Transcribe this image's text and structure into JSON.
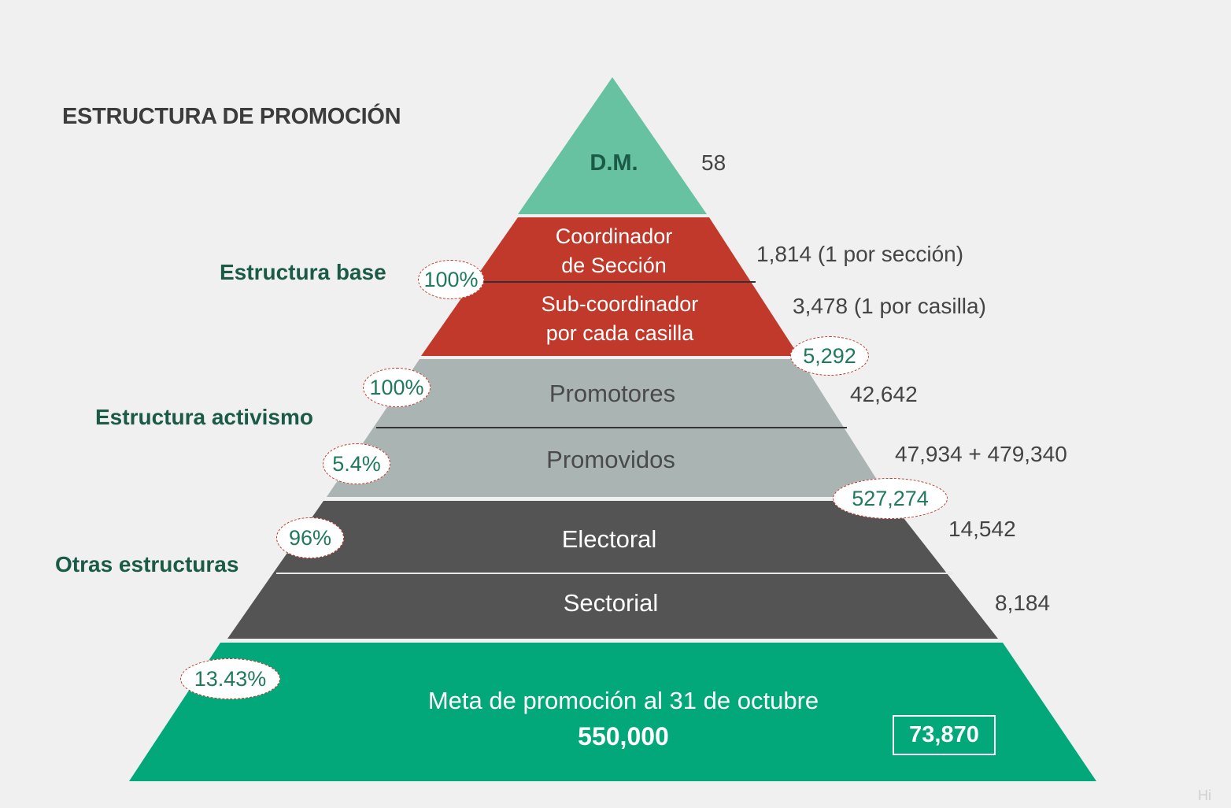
{
  "title": "ESTRUCTURA DE PROMOCIÓN",
  "groups": {
    "base": "Estructura base",
    "activismo": "Estructura activismo",
    "otras": "Otras estructuras"
  },
  "levels": {
    "dm": {
      "label": "D.M.",
      "value": "58"
    },
    "coordinador": {
      "label_line1": "Coordinador",
      "label_line2": "de Sección",
      "value": "1,814 (1 por sección)"
    },
    "subcoordinador": {
      "label_line1": "Sub-coordinador",
      "label_line2": "por cada casilla",
      "value": "3,478 (1 por casilla)"
    },
    "promotores": {
      "label": "Promotores",
      "value": "42,642"
    },
    "promovidos": {
      "label": "Promovidos",
      "value": "47,934 + 479,340"
    },
    "electoral": {
      "label": "Electoral",
      "value": "14,542"
    },
    "sectorial": {
      "label": "Sectorial",
      "value": "8,184"
    },
    "meta": {
      "label": "Meta de promoción al 31 de octubre",
      "value": "550,000",
      "achieved": "73,870"
    }
  },
  "badges": {
    "base_pct": "100%",
    "base_total": "5,292",
    "promotores_pct": "100%",
    "promovidos_pct": "5.4%",
    "activismo_total": "527,274",
    "otras_pct": "96%",
    "meta_pct": "13.43%"
  },
  "watermark": "Hi",
  "colors": {
    "top": "#66c2a0",
    "red": "#c0392b",
    "grey": "#aab4b2",
    "dark": "#545454",
    "green": "#02a77a",
    "group_text": "#1a5a46",
    "badge_text": "#1f7a5a"
  }
}
